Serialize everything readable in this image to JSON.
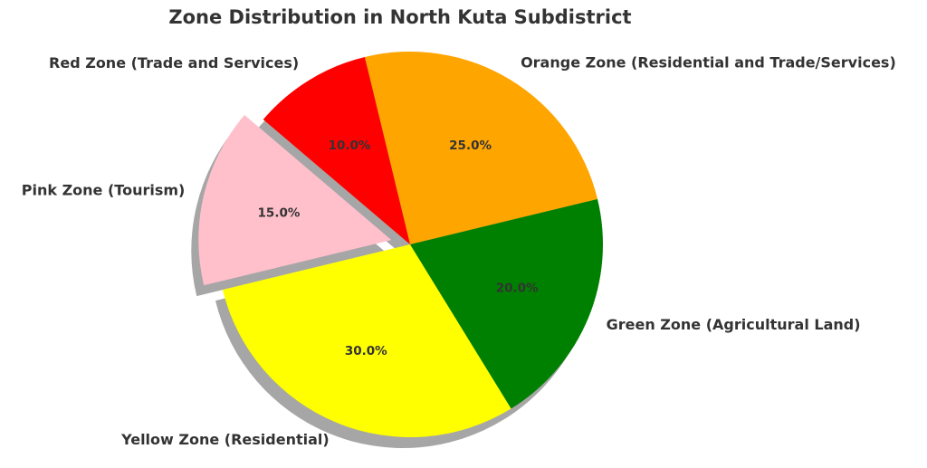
{
  "chart_data": {
    "type": "pie",
    "title": "Zone Distribution in North Kuta Subdistrict",
    "categories": [
      "Orange Zone (Residential and Trade/Services)",
      "Red Zone (Trade and Services)",
      "Pink Zone (Tourism)",
      "Yellow Zone (Residential)",
      "Green Zone (Agricultural Land)"
    ],
    "values": [
      25,
      10,
      15,
      30,
      20
    ],
    "value_labels": [
      "25.0%",
      "10.0%",
      "15.0%",
      "30.0%",
      "20.0%"
    ],
    "colors": [
      "#ffa500",
      "#ff0000",
      "#ffc0cb",
      "#ffff00",
      "#008000"
    ],
    "exploded": [
      false,
      false,
      true,
      false,
      false
    ],
    "shadow": true
  }
}
